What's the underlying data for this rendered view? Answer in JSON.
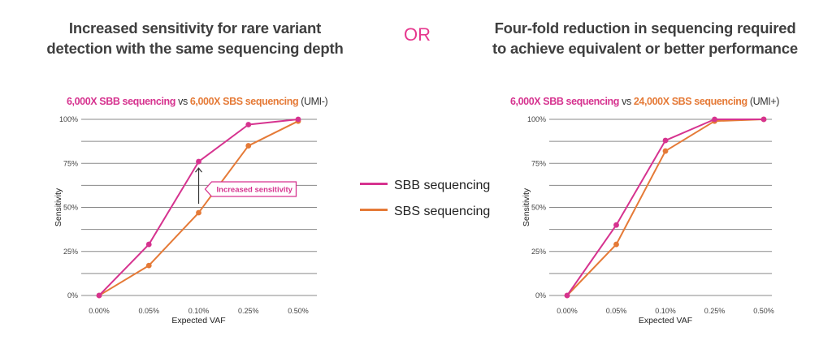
{
  "headline_left": {
    "line1": "Increased sensitivity for rare variant",
    "line2": "detection with the same sequencing depth"
  },
  "or_label": "OR",
  "headline_right": {
    "line1": "Four-fold reduction in sequencing required",
    "line2": "to achieve equivalent or better performance"
  },
  "legend": {
    "items": [
      {
        "label": "SBB sequencing",
        "color": "#d6338f"
      },
      {
        "label": "SBS sequencing",
        "color": "#e57a37"
      }
    ]
  },
  "colors": {
    "sbb": "#d6338f",
    "sbs": "#e57a37"
  },
  "chart_data": [
    {
      "type": "line",
      "title_parts": {
        "sbb": "6,000X SBB sequencing",
        "vs": " vs ",
        "sbs": "6,000X SBS sequencing",
        "suffix": " (UMI-)"
      },
      "categories": [
        "0.00%",
        "0.05%",
        "0.10%",
        "0.25%",
        "0.50%"
      ],
      "ylim": [
        0,
        100
      ],
      "yticks": [
        "0%",
        "25%",
        "50%",
        "75%",
        "100%"
      ],
      "grid": true,
      "xlabel": "Expected VAF",
      "ylabel": "Sensitivity",
      "series": [
        {
          "name": "SBB sequencing",
          "key": "sbb",
          "values": [
            0,
            29,
            76,
            97,
            100
          ]
        },
        {
          "name": "SBS sequencing",
          "key": "sbs",
          "values": [
            0,
            17,
            47,
            85,
            99
          ]
        }
      ],
      "annotation": {
        "text": "Increased sensitivity",
        "from_value": 47,
        "to_value": 76,
        "category_index": 2
      }
    },
    {
      "type": "line",
      "title_parts": {
        "sbb": "6,000X SBB sequencing",
        "vs": " vs ",
        "sbs": "24,000X SBS sequencing",
        "suffix": " (UMI+)"
      },
      "categories": [
        "0.00%",
        "0.05%",
        "0.10%",
        "0.25%",
        "0.50%"
      ],
      "ylim": [
        0,
        100
      ],
      "yticks": [
        "0%",
        "25%",
        "50%",
        "75%",
        "100%"
      ],
      "grid": true,
      "xlabel": "Expected VAF",
      "ylabel": "Sensitivity",
      "series": [
        {
          "name": "SBB sequencing",
          "key": "sbb",
          "values": [
            0,
            40,
            88,
            100,
            100
          ]
        },
        {
          "name": "SBS sequencing",
          "key": "sbs",
          "values": [
            0,
            29,
            82,
            99,
            100
          ]
        }
      ]
    }
  ]
}
